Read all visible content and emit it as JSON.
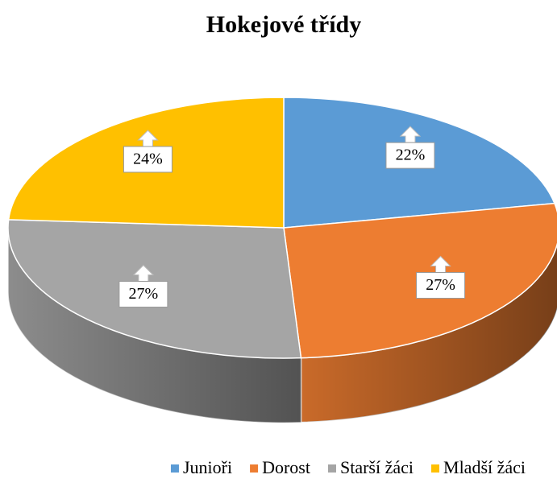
{
  "chart_data": {
    "type": "pie",
    "title": "Hokejové třídy",
    "categories": [
      "Junioři",
      "Dorost",
      "Starší žáci",
      "Mladší žáci"
    ],
    "values": [
      22,
      27,
      27,
      24
    ],
    "value_labels": [
      "22%",
      "27%",
      "27%",
      "24%"
    ],
    "colors": [
      "#5b9bd5",
      "#ed7d31",
      "#a5a5a5",
      "#ffc000"
    ],
    "legend": "bottom"
  }
}
